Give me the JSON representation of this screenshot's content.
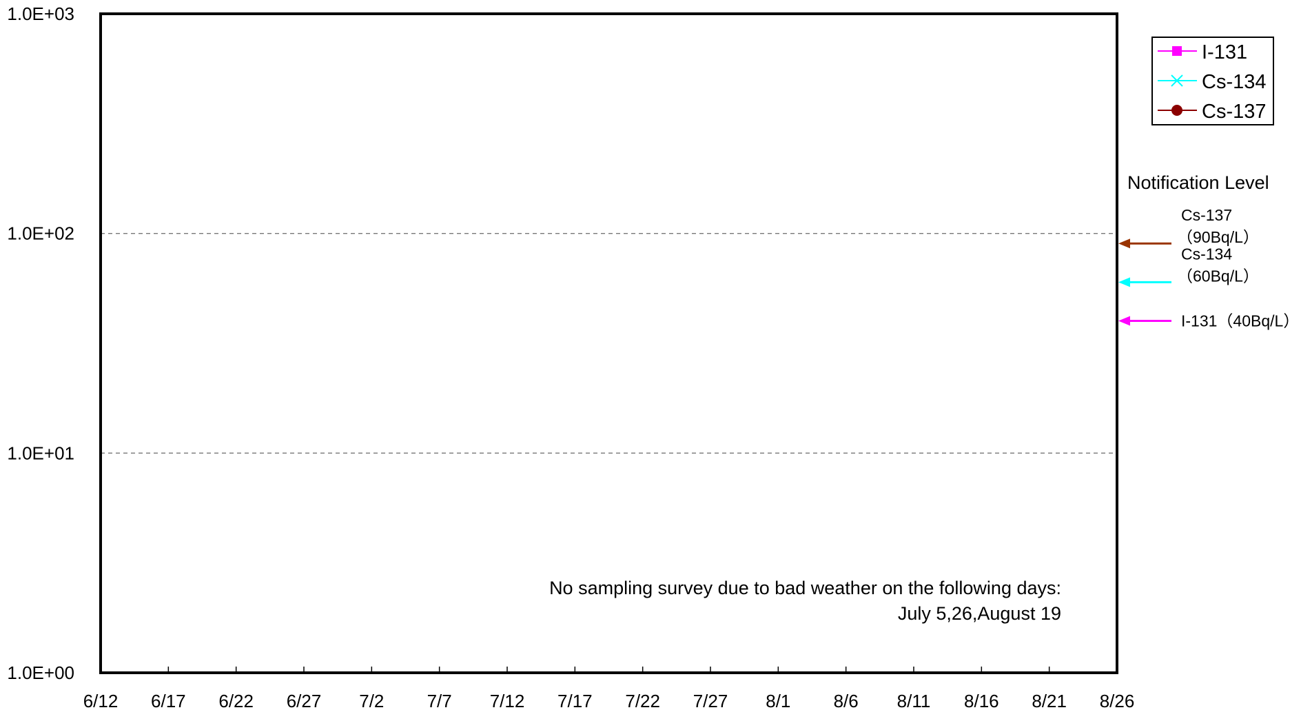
{
  "chart_data": {
    "type": "line",
    "yscale": "log",
    "ylim": [
      1,
      1000
    ],
    "y_ticks": [
      {
        "value": 1,
        "label": "1.0E+00"
      },
      {
        "value": 10,
        "label": "1.0E+01"
      },
      {
        "value": 100,
        "label": "1.0E+02"
      },
      {
        "value": 1000,
        "label": "1.0E+03"
      }
    ],
    "x_ticks": [
      "6/12",
      "6/17",
      "6/22",
      "6/27",
      "7/2",
      "7/7",
      "7/12",
      "7/17",
      "7/22",
      "7/27",
      "8/1",
      "8/6",
      "8/11",
      "8/16",
      "8/21",
      "8/26"
    ],
    "grid": "horizontal dashed at 10 and 100",
    "legend_position": "top-right",
    "series": [
      {
        "name": "I-131",
        "color": "#ff00ff",
        "marker": "square",
        "values": []
      },
      {
        "name": "Cs-134",
        "color": "#00ffff",
        "marker": "x",
        "values": []
      },
      {
        "name": "Cs-137",
        "color": "#8b0000",
        "marker": "circle",
        "values": []
      }
    ],
    "notification": {
      "title": "Notification Level",
      "levels": [
        {
          "nuclide": "Cs-137",
          "value": 90,
          "line1": "Cs-137",
          "line2": "（90Bq/L）",
          "color": "#993300"
        },
        {
          "nuclide": "Cs-134",
          "value": 60,
          "line1": "Cs-134",
          "line2": "（60Bq/L）",
          "color": "#00ffff"
        },
        {
          "nuclide": "I-131",
          "value": 40,
          "line1": "I-131（40Bq/L）",
          "line2": "",
          "color": "#ff00ff"
        }
      ]
    },
    "annotation": {
      "line1": "No sampling survey due to bad weather on the following days:",
      "line2": "July 5,26,August 19"
    }
  }
}
